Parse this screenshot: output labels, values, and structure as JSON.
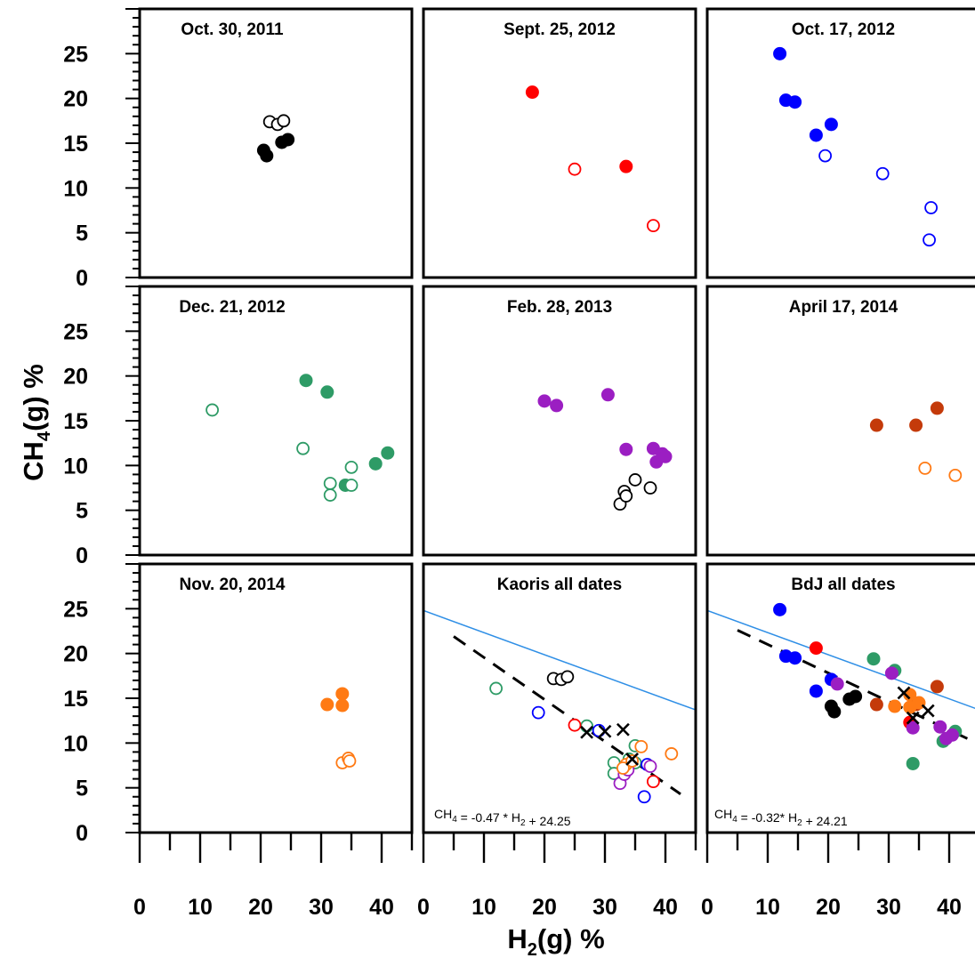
{
  "figure": {
    "xlabel": "H2(g) %",
    "ylabel": "CH4(g) %"
  },
  "colors": {
    "black": "#000000",
    "red": "#ff0000",
    "blue": "#0000ff",
    "green": "#2e9b66",
    "purple": "#9b1ec2",
    "brown": "#c43a0a",
    "orange": "#ff7a14",
    "reference_line": "#2f8fe6"
  },
  "chart_data": [
    {
      "type": "scatter",
      "panel": "p11",
      "title": "Oct. 30, 2011",
      "xlim": [
        0,
        45
      ],
      "ylim": [
        0,
        30
      ],
      "xticks": [
        0,
        10,
        20,
        30,
        40
      ],
      "yticks": [
        0,
        5,
        10,
        15,
        20,
        25
      ],
      "series": [
        {
          "color": "black",
          "filled": true,
          "points": [
            [
              20.5,
              14.2
            ],
            [
              21,
              13.6
            ],
            [
              23.5,
              15.1
            ],
            [
              24.5,
              15.4
            ]
          ]
        },
        {
          "color": "black",
          "filled": false,
          "points": [
            [
              21.5,
              17.4
            ],
            [
              22.8,
              17.1
            ],
            [
              23.8,
              17.5
            ]
          ]
        }
      ]
    },
    {
      "type": "scatter",
      "panel": "p12",
      "title": "Sept. 25, 2012",
      "xlim": [
        0,
        45
      ],
      "ylim": [
        0,
        30
      ],
      "series": [
        {
          "color": "red",
          "filled": true,
          "points": [
            [
              18,
              20.7
            ],
            [
              33.5,
              12.4
            ]
          ]
        },
        {
          "color": "red",
          "filled": false,
          "points": [
            [
              25,
              12.1
            ],
            [
              38,
              5.8
            ]
          ]
        }
      ]
    },
    {
      "type": "scatter",
      "panel": "p13",
      "title": "Oct. 17, 2012",
      "xlim": [
        0,
        45
      ],
      "ylim": [
        0,
        30
      ],
      "series": [
        {
          "color": "blue",
          "filled": true,
          "points": [
            [
              12,
              25
            ],
            [
              13,
              19.8
            ],
            [
              14.5,
              19.6
            ],
            [
              18,
              15.9
            ],
            [
              20.5,
              17.1
            ]
          ]
        },
        {
          "color": "blue",
          "filled": false,
          "points": [
            [
              19.5,
              13.6
            ],
            [
              29,
              11.6
            ],
            [
              37,
              7.8
            ],
            [
              36.7,
              4.2
            ]
          ]
        }
      ]
    },
    {
      "type": "scatter",
      "panel": "p21",
      "title": "Dec. 21, 2012",
      "xlim": [
        0,
        45
      ],
      "ylim": [
        0,
        30
      ],
      "series": [
        {
          "color": "green",
          "filled": true,
          "points": [
            [
              27.5,
              19.5
            ],
            [
              31,
              18.2
            ],
            [
              34,
              7.8
            ],
            [
              39,
              10.2
            ],
            [
              41,
              11.4
            ]
          ]
        },
        {
          "color": "green",
          "filled": false,
          "points": [
            [
              12,
              16.2
            ],
            [
              27,
              11.9
            ],
            [
              31.5,
              8
            ],
            [
              31.5,
              6.7
            ],
            [
              35,
              9.8
            ],
            [
              35,
              7.8
            ]
          ]
        }
      ]
    },
    {
      "type": "scatter",
      "panel": "p22",
      "title": "Feb. 28, 2013",
      "xlim": [
        0,
        45
      ],
      "ylim": [
        0,
        30
      ],
      "series": [
        {
          "color": "purple",
          "filled": true,
          "points": [
            [
              20,
              17.2
            ],
            [
              22,
              16.7
            ],
            [
              30.5,
              17.9
            ],
            [
              33.5,
              11.8
            ],
            [
              38,
              11.9
            ],
            [
              38.5,
              10.4
            ],
            [
              39.5,
              11.3
            ],
            [
              40,
              11
            ]
          ]
        },
        {
          "color": "black",
          "filled": false,
          "points": [
            [
              32.5,
              5.7
            ],
            [
              33.2,
              7.1
            ],
            [
              33.5,
              6.6
            ],
            [
              35,
              8.4
            ],
            [
              37.5,
              7.5
            ]
          ]
        }
      ]
    },
    {
      "type": "scatter",
      "panel": "p23",
      "title": "April 17, 2014",
      "xlim": [
        0,
        45
      ],
      "ylim": [
        0,
        30
      ],
      "series": [
        {
          "color": "brown",
          "filled": true,
          "points": [
            [
              28,
              14.5
            ],
            [
              34.5,
              14.5
            ],
            [
              38,
              16.4
            ]
          ]
        },
        {
          "color": "orange",
          "filled": false,
          "points": [
            [
              36,
              9.7
            ],
            [
              41,
              8.9
            ]
          ]
        }
      ]
    },
    {
      "type": "scatter",
      "panel": "p31",
      "title": "Nov. 20, 2014",
      "xlim": [
        0,
        45
      ],
      "ylim": [
        0,
        30
      ],
      "series": [
        {
          "color": "orange",
          "filled": true,
          "points": [
            [
              31,
              14.3
            ],
            [
              33.5,
              15.5
            ],
            [
              33.5,
              14.2
            ]
          ]
        },
        {
          "color": "orange",
          "filled": false,
          "points": [
            [
              33.5,
              7.8
            ],
            [
              34.5,
              8.3
            ],
            [
              34.7,
              8
            ]
          ]
        }
      ]
    },
    {
      "type": "scatter",
      "panel": "p32",
      "title": "Kaoris all dates",
      "equation": "CH4 = -0.47 * H2 + 24.25",
      "xlim": [
        0,
        45
      ],
      "ylim": [
        0,
        30
      ],
      "series": [
        {
          "color": "black",
          "filled": false,
          "points": [
            [
              21.5,
              17.2
            ],
            [
              22.8,
              17.1
            ],
            [
              23.8,
              17.4
            ]
          ]
        },
        {
          "color": "green",
          "filled": false,
          "points": [
            [
              12,
              16.1
            ],
            [
              27,
              11.9
            ],
            [
              31.5,
              7.8
            ],
            [
              31.5,
              6.6
            ],
            [
              35,
              9.7
            ],
            [
              35,
              7.8
            ],
            [
              34,
              8.2
            ]
          ]
        },
        {
          "color": "blue",
          "filled": false,
          "points": [
            [
              19,
              13.4
            ],
            [
              29,
              11.4
            ],
            [
              37,
              7.6
            ],
            [
              36.5,
              4
            ]
          ]
        },
        {
          "color": "red",
          "filled": false,
          "points": [
            [
              25,
              12
            ],
            [
              38,
              5.7
            ]
          ]
        },
        {
          "color": "purple",
          "filled": false,
          "points": [
            [
              32.5,
              5.5
            ],
            [
              33.2,
              6.5
            ],
            [
              33.8,
              7
            ],
            [
              37.5,
              7.4
            ]
          ]
        },
        {
          "color": "orange",
          "filled": false,
          "points": [
            [
              33.5,
              7.6
            ],
            [
              34.5,
              8
            ],
            [
              36,
              9.6
            ],
            [
              41,
              8.8
            ],
            [
              33,
              7.2
            ]
          ]
        },
        {
          "color": "black",
          "filled": false,
          "marker": "x",
          "points": [
            [
              27,
              11.2
            ],
            [
              30,
              11.3
            ],
            [
              33,
              11.5
            ],
            [
              34.5,
              8.2
            ]
          ]
        }
      ],
      "lines": [
        {
          "style": "dashed",
          "color": "black",
          "from": [
            5,
            21.9
          ],
          "to": [
            42.5,
            4.3
          ]
        },
        {
          "style": "solid",
          "color": "reference_line",
          "from": [
            0,
            24.8
          ],
          "to": [
            45,
            13.7
          ]
        }
      ]
    },
    {
      "type": "scatter",
      "panel": "p33",
      "title": "BdJ all dates",
      "equation": "CH4 = -0.32* H2 + 24.21",
      "xlim": [
        0,
        45
      ],
      "ylim": [
        0,
        30
      ],
      "series": [
        {
          "color": "black",
          "filled": true,
          "points": [
            [
              20.5,
              14.1
            ],
            [
              21,
              13.5
            ],
            [
              23.5,
              14.9
            ],
            [
              24.5,
              15.2
            ]
          ]
        },
        {
          "color": "red",
          "filled": true,
          "points": [
            [
              18,
              20.6
            ],
            [
              33.5,
              12.3
            ]
          ]
        },
        {
          "color": "blue",
          "filled": true,
          "points": [
            [
              12,
              24.9
            ],
            [
              13,
              19.7
            ],
            [
              14.5,
              19.5
            ],
            [
              18,
              15.8
            ],
            [
              20.5,
              17.1
            ]
          ]
        },
        {
          "color": "green",
          "filled": true,
          "points": [
            [
              27.5,
              19.4
            ],
            [
              31,
              18.1
            ],
            [
              34,
              7.7
            ],
            [
              39,
              10.2
            ],
            [
              41,
              11.3
            ]
          ]
        },
        {
          "color": "purple",
          "filled": true,
          "points": [
            [
              21.5,
              16.6
            ],
            [
              30.5,
              17.8
            ],
            [
              34,
              11.7
            ],
            [
              38.5,
              11.8
            ],
            [
              39.5,
              10.5
            ],
            [
              40.5,
              10.9
            ]
          ]
        },
        {
          "color": "brown",
          "filled": true,
          "points": [
            [
              28,
              14.3
            ],
            [
              34.5,
              14.3
            ],
            [
              38,
              16.3
            ]
          ]
        },
        {
          "color": "orange",
          "filled": true,
          "points": [
            [
              31,
              14.1
            ],
            [
              33.5,
              15.4
            ],
            [
              33.5,
              14
            ],
            [
              35,
              14.5
            ]
          ]
        },
        {
          "color": "black",
          "filled": false,
          "marker": "x",
          "points": [
            [
              32.5,
              15.6
            ],
            [
              36.5,
              13.6
            ],
            [
              34,
              12.8
            ]
          ]
        }
      ],
      "lines": [
        {
          "style": "dashed",
          "color": "black",
          "from": [
            5,
            22.6
          ],
          "to": [
            43,
            10.5
          ]
        },
        {
          "style": "solid",
          "color": "reference_line",
          "from": [
            0,
            24.8
          ],
          "to": [
            45,
            13.7
          ]
        }
      ]
    }
  ]
}
